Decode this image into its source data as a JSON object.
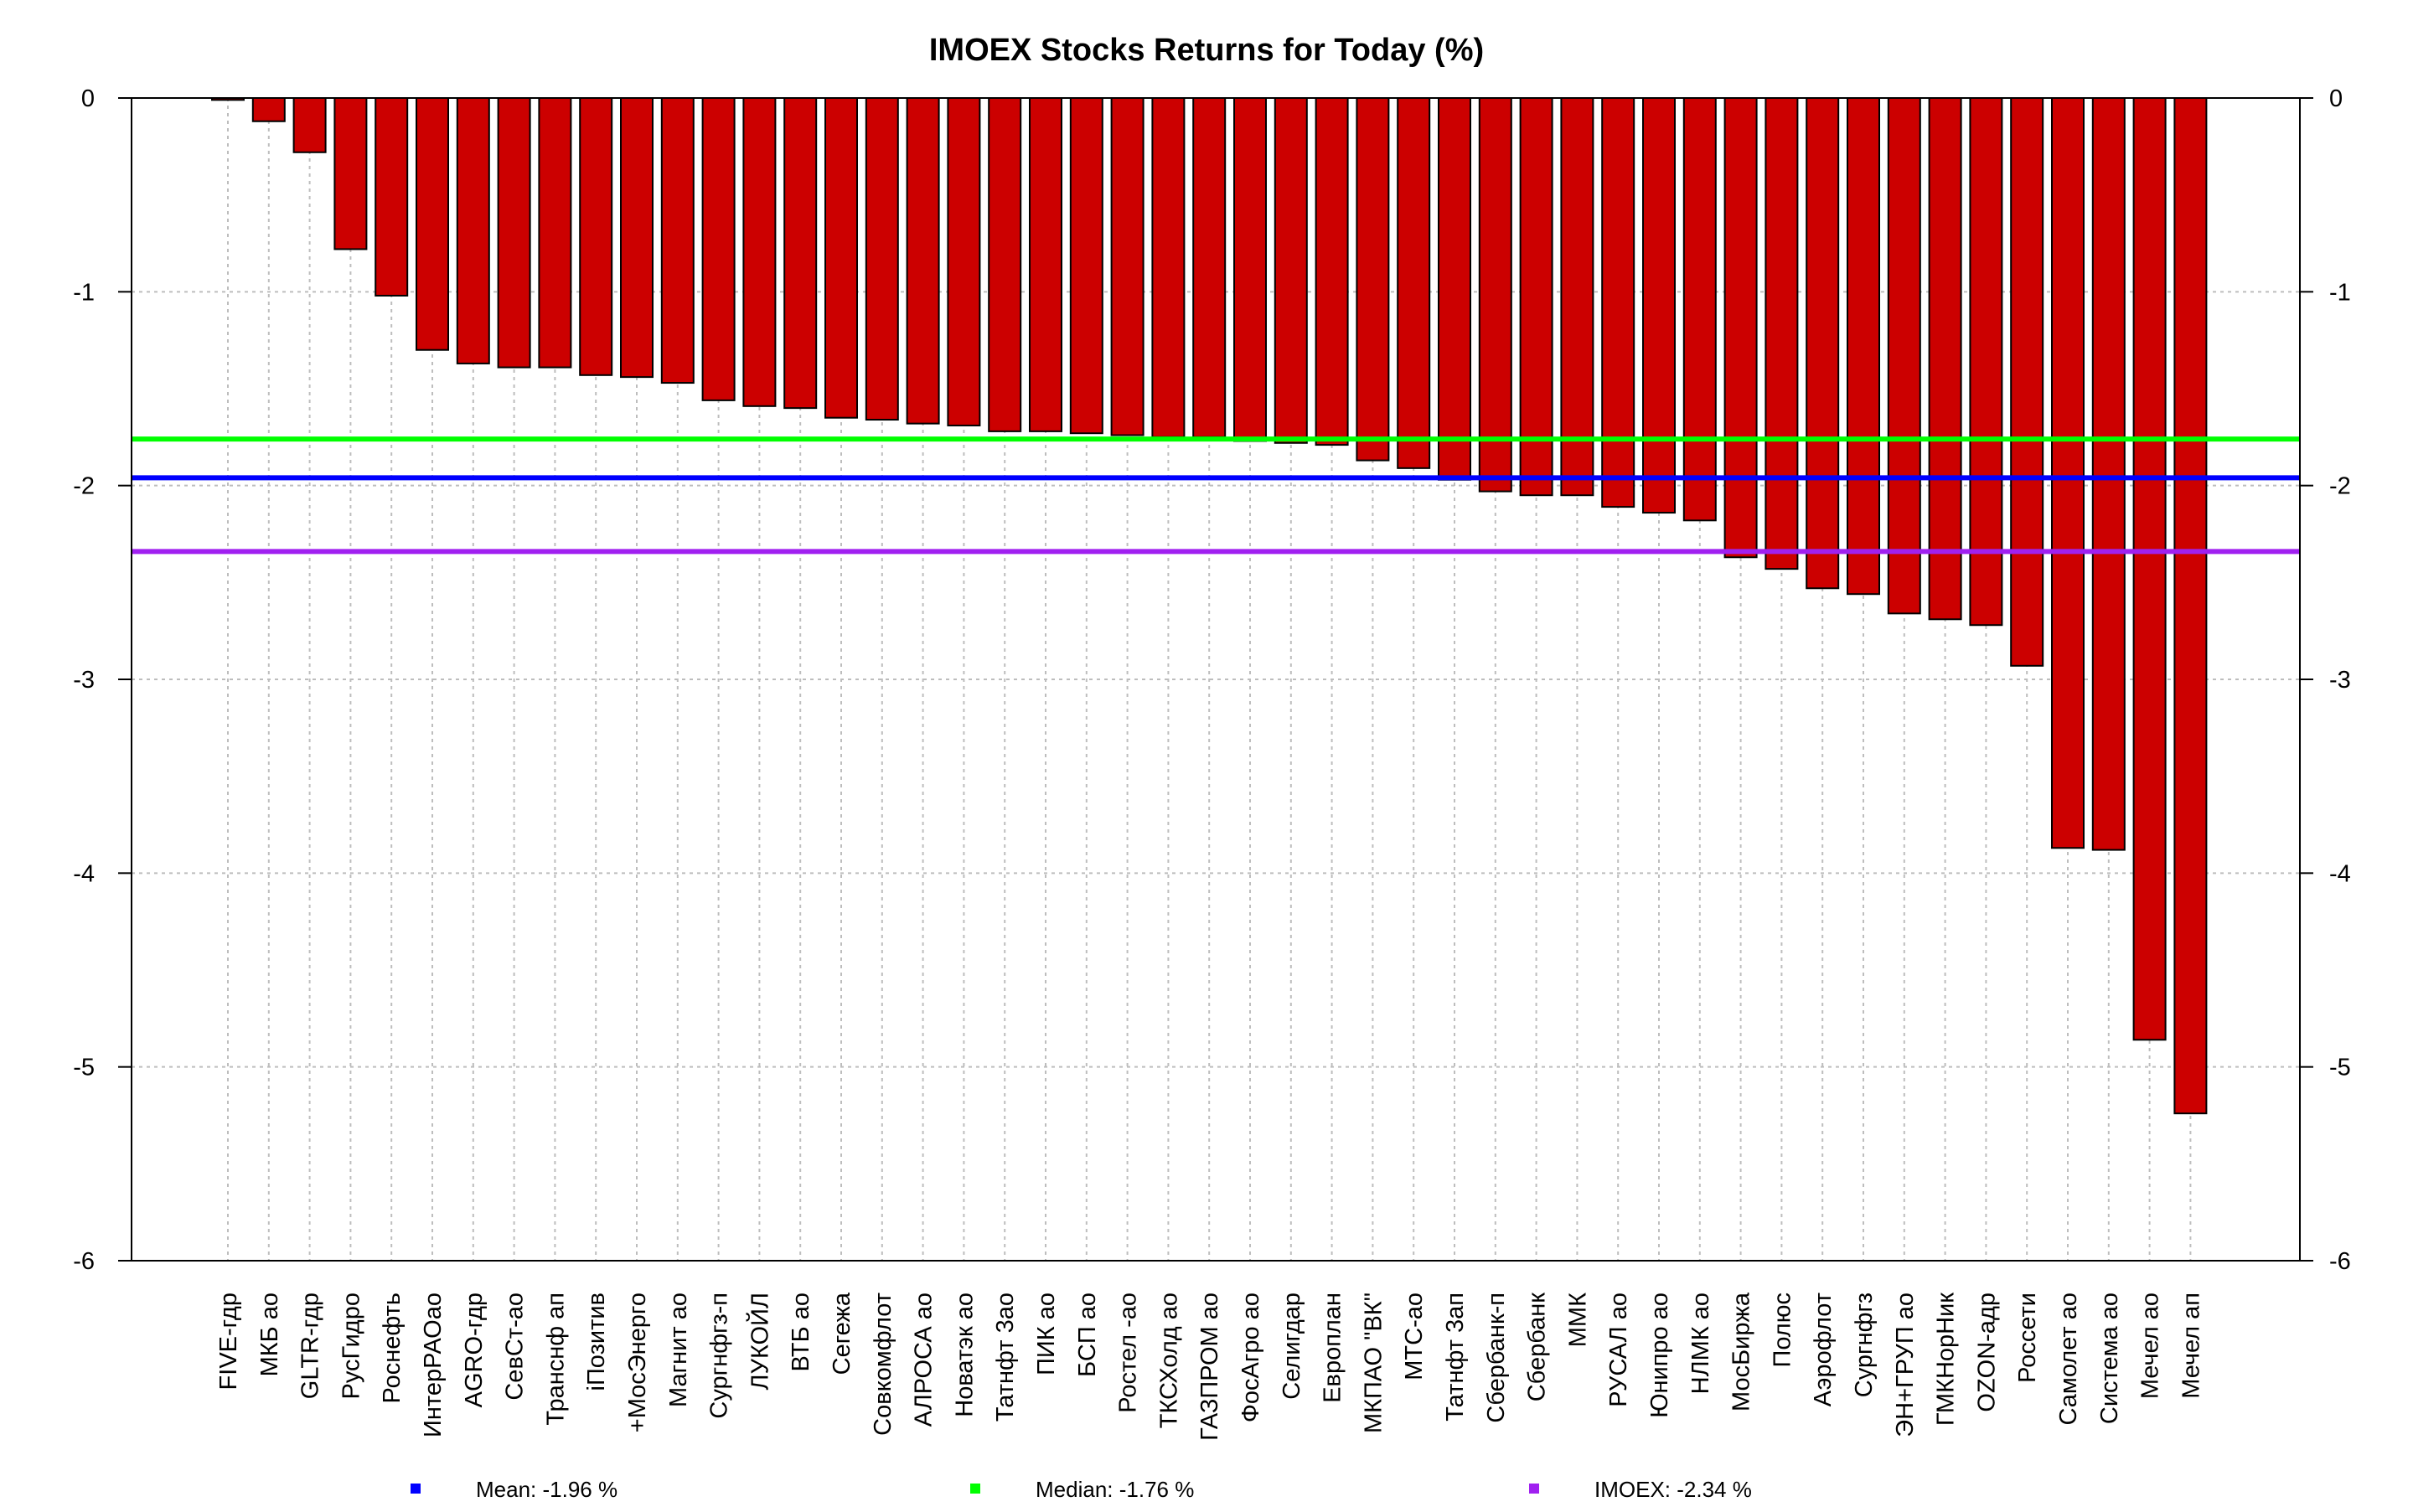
{
  "chart_data": {
    "type": "bar",
    "title": "IMOEX Stocks Returns for Today (%)",
    "xlabel": "",
    "ylabel": "",
    "ylim": [
      -6,
      0
    ],
    "yticks": [
      0,
      -1,
      -2,
      -3,
      -4,
      -5,
      -6
    ],
    "grid": true,
    "categories": [
      "FIVE-гдр",
      "МКБ ао",
      "GLTR-гдр",
      "РусГидро",
      "Роснефть",
      "ИнтерРАОао",
      "AGRO-гдр",
      "СевСт-ао",
      "Транснф ап",
      "iПозитив",
      "+МосЭнерго",
      "Магнит ао",
      "Сургнфгз-п",
      "ЛУКОЙЛ",
      "ВТБ ао",
      "Сегежа",
      "Совкомфлот",
      "АЛРОСА ао",
      "Новатэк ао",
      "Татнфт 3ао",
      "ПИК ао",
      "БСП ао",
      "Ростел -ао",
      "ТКСХолд ао",
      "ГАЗПРОМ ао",
      "ФосАгро ао",
      "Селигдар",
      "Европлан",
      "МКПАО \"ВК\"",
      "МТС-ао",
      "Татнфт 3ап",
      "Сбербанк-п",
      "Сбербанк",
      "ММК",
      "РУСАЛ ао",
      "Юнипро ао",
      "НЛМК ао",
      "МосБиржа",
      "Полюс",
      "Аэрофлот",
      "Сургнфгз",
      "ЭН+ГРУП ао",
      "ГМКНорНик",
      "OZON-адр",
      "Россети",
      "Самолет ао",
      "Система ао",
      "Мечел ао",
      "Мечел ап"
    ],
    "values": [
      -0.01,
      -0.12,
      -0.28,
      -0.78,
      -1.02,
      -1.3,
      -1.37,
      -1.39,
      -1.39,
      -1.43,
      -1.44,
      -1.47,
      -1.56,
      -1.59,
      -1.6,
      -1.65,
      -1.66,
      -1.68,
      -1.69,
      -1.72,
      -1.72,
      -1.73,
      -1.74,
      -1.75,
      -1.75,
      -1.77,
      -1.78,
      -1.79,
      -1.87,
      -1.91,
      -1.97,
      -2.03,
      -2.05,
      -2.05,
      -2.11,
      -2.14,
      -2.18,
      -2.37,
      -2.43,
      -2.53,
      -2.56,
      -2.66,
      -2.69,
      -2.72,
      -2.93,
      -3.87,
      -3.88,
      -4.86,
      -5.24
    ],
    "bar_color": "#CC0000",
    "bar_edge_color": "#000000",
    "reference_lines": [
      {
        "name": "Mean",
        "value": -1.96,
        "color": "#0000FF"
      },
      {
        "name": "Median",
        "value": -1.76,
        "color": "#00FF00"
      },
      {
        "name": "IMOEX",
        "value": -2.34,
        "color": "#A020F0"
      }
    ],
    "legend": {
      "placement": "bottom",
      "items": [
        {
          "label": "Mean: -1.96 %",
          "color": "#0000FF"
        },
        {
          "label": "Median: -1.76 %",
          "color": "#00FF00"
        },
        {
          "label": "IMOEX: -2.34 %",
          "color": "#A020F0"
        }
      ]
    }
  }
}
